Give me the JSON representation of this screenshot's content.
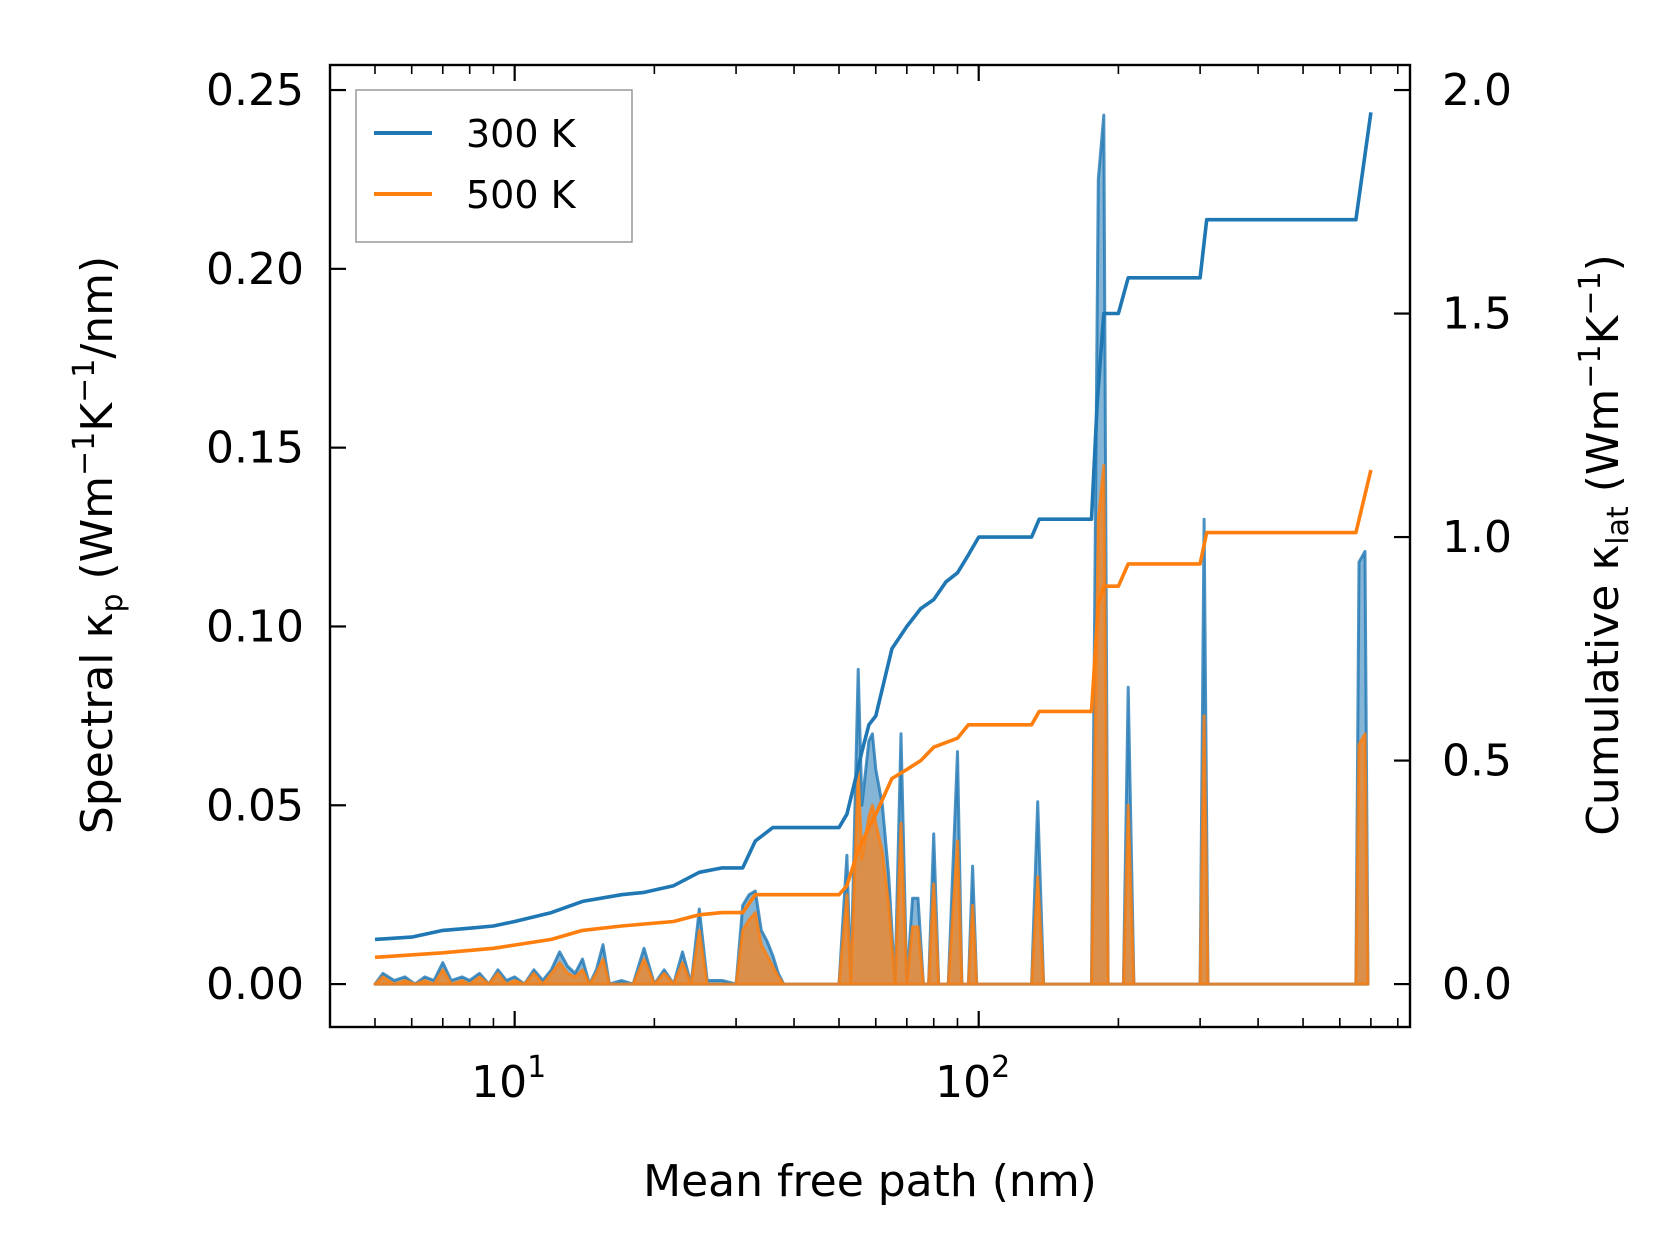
{
  "chart_data": {
    "type": "line",
    "xlabel": "Mean free path (nm)",
    "ylabel_left_main": "Spectral κ",
    "ylabel_left_sub": "p",
    "ylabel_left_unit_a": "(Wm",
    "ylabel_left_sup1": "−1",
    "ylabel_left_unit_b": "K",
    "ylabel_left_sup2": "−1",
    "ylabel_left_unit_c": "/nm)",
    "ylabel_right_main": "Cumulative κ",
    "ylabel_right_sub": "lat",
    "ylabel_right_unit_a": "(Wm",
    "ylabel_right_sup1": "−1",
    "ylabel_right_unit_b": "K",
    "ylabel_right_sup2": "−1",
    "ylabel_right_unit_c": ")",
    "x_scale": "log",
    "xlim": [
      4.0,
      850
    ],
    "ylim_left": [
      -0.012,
      0.257
    ],
    "ylim_right": [
      -0.096,
      2.056
    ],
    "left_ticks": [
      {
        "value": 0.0,
        "label": "0.00"
      },
      {
        "value": 0.05,
        "label": "0.05"
      },
      {
        "value": 0.1,
        "label": "0.10"
      },
      {
        "value": 0.15,
        "label": "0.15"
      },
      {
        "value": 0.2,
        "label": "0.20"
      },
      {
        "value": 0.25,
        "label": "0.25"
      }
    ],
    "right_ticks": [
      {
        "value": 0.0,
        "label": "0.0"
      },
      {
        "value": 0.5,
        "label": "0.5"
      },
      {
        "value": 1.0,
        "label": "1.0"
      },
      {
        "value": 1.5,
        "label": "1.5"
      },
      {
        "value": 2.0,
        "label": "2.0"
      }
    ],
    "x_ticks": [
      {
        "value": 10,
        "base": "10",
        "exp": "1"
      },
      {
        "value": 100,
        "base": "10",
        "exp": "2"
      }
    ],
    "legend_position": "upper-left",
    "series": [
      {
        "name": "300 K",
        "color": "#1f77b4",
        "cumulative": [
          [
            5.0,
            0.1
          ],
          [
            6.0,
            0.105
          ],
          [
            7.0,
            0.12
          ],
          [
            8.0,
            0.125
          ],
          [
            9.0,
            0.13
          ],
          [
            10.0,
            0.14
          ],
          [
            12.0,
            0.16
          ],
          [
            14.0,
            0.185
          ],
          [
            17.0,
            0.2
          ],
          [
            19.0,
            0.205
          ],
          [
            22.0,
            0.22
          ],
          [
            25.0,
            0.25
          ],
          [
            28.0,
            0.26
          ],
          [
            31.0,
            0.26
          ],
          [
            33.0,
            0.32
          ],
          [
            36.0,
            0.35
          ],
          [
            45.0,
            0.35
          ],
          [
            50.0,
            0.35
          ],
          [
            52.0,
            0.38
          ],
          [
            54.0,
            0.45
          ],
          [
            56.0,
            0.52
          ],
          [
            58.0,
            0.58
          ],
          [
            60.0,
            0.6
          ],
          [
            65.0,
            0.75
          ],
          [
            70.0,
            0.8
          ],
          [
            75.0,
            0.84
          ],
          [
            80.0,
            0.86
          ],
          [
            85.0,
            0.9
          ],
          [
            90.0,
            0.92
          ],
          [
            95.0,
            0.96
          ],
          [
            100.0,
            1.0
          ],
          [
            130.0,
            1.0
          ],
          [
            135.0,
            1.04
          ],
          [
            175.0,
            1.04
          ],
          [
            180.0,
            1.3
          ],
          [
            186.0,
            1.5
          ],
          [
            200.0,
            1.5
          ],
          [
            210.0,
            1.58
          ],
          [
            300.0,
            1.58
          ],
          [
            310.0,
            1.71
          ],
          [
            650.0,
            1.71
          ],
          [
            700.0,
            1.95
          ]
        ],
        "spectral": [
          [
            5.0,
            0.0
          ],
          [
            5.2,
            0.003
          ],
          [
            5.5,
            0.001
          ],
          [
            5.8,
            0.002
          ],
          [
            6.1,
            0.0
          ],
          [
            6.4,
            0.002
          ],
          [
            6.7,
            0.001
          ],
          [
            7.0,
            0.006
          ],
          [
            7.3,
            0.001
          ],
          [
            7.7,
            0.002
          ],
          [
            8.0,
            0.001
          ],
          [
            8.4,
            0.003
          ],
          [
            8.8,
            0.0
          ],
          [
            9.2,
            0.004
          ],
          [
            9.6,
            0.001
          ],
          [
            10.0,
            0.002
          ],
          [
            10.5,
            0.0
          ],
          [
            11.0,
            0.004
          ],
          [
            11.5,
            0.001
          ],
          [
            12.0,
            0.004
          ],
          [
            12.5,
            0.009
          ],
          [
            13.0,
            0.005
          ],
          [
            13.5,
            0.003
          ],
          [
            14.0,
            0.007
          ],
          [
            14.5,
            0.0
          ],
          [
            15.0,
            0.004
          ],
          [
            15.5,
            0.011
          ],
          [
            16.0,
            0.0
          ],
          [
            17.0,
            0.001
          ],
          [
            18.0,
            0.0
          ],
          [
            19.0,
            0.01
          ],
          [
            20.0,
            0.0
          ],
          [
            21.0,
            0.004
          ],
          [
            22.0,
            0.0
          ],
          [
            23.0,
            0.009
          ],
          [
            24.0,
            0.0
          ],
          [
            25.0,
            0.021
          ],
          [
            26.0,
            0.001
          ],
          [
            28.0,
            0.001
          ],
          [
            30.0,
            0.0
          ],
          [
            31.0,
            0.022
          ],
          [
            32.0,
            0.025
          ],
          [
            33.0,
            0.026
          ],
          [
            34.0,
            0.015
          ],
          [
            35.0,
            0.012
          ],
          [
            36.0,
            0.008
          ],
          [
            37.0,
            0.003
          ],
          [
            38.0,
            0.0
          ],
          [
            48.0,
            0.0
          ],
          [
            50.0,
            0.0
          ],
          [
            52.0,
            0.036
          ],
          [
            53.0,
            0.0
          ],
          [
            55.0,
            0.088
          ],
          [
            56.0,
            0.05
          ],
          [
            58.0,
            0.068
          ],
          [
            59.0,
            0.07
          ],
          [
            60.0,
            0.06
          ],
          [
            62.0,
            0.05
          ],
          [
            64.0,
            0.03
          ],
          [
            66.0,
            0.0
          ],
          [
            68.0,
            0.07
          ],
          [
            70.0,
            0.0
          ],
          [
            72.0,
            0.024
          ],
          [
            74.0,
            0.024
          ],
          [
            76.0,
            0.0
          ],
          [
            78.0,
            0.0
          ],
          [
            80.0,
            0.042
          ],
          [
            82.0,
            0.0
          ],
          [
            86.0,
            0.0
          ],
          [
            90.0,
            0.065
          ],
          [
            92.0,
            0.0
          ],
          [
            95.0,
            0.0
          ],
          [
            97.0,
            0.033
          ],
          [
            99.0,
            0.0
          ],
          [
            130.0,
            0.0
          ],
          [
            134.0,
            0.051
          ],
          [
            138.0,
            0.0
          ],
          [
            175.0,
            0.0
          ],
          [
            181.0,
            0.225
          ],
          [
            186.0,
            0.243
          ],
          [
            190.0,
            0.0
          ],
          [
            205.0,
            0.0
          ],
          [
            210.0,
            0.083
          ],
          [
            216.0,
            0.0
          ],
          [
            300.0,
            0.0
          ],
          [
            306.0,
            0.13
          ],
          [
            312.0,
            0.0
          ],
          [
            650.0,
            0.0
          ],
          [
            660.0,
            0.118
          ],
          [
            680.0,
            0.121
          ],
          [
            690.0,
            0.0
          ]
        ]
      },
      {
        "name": "500 K",
        "color": "#ff7f0e",
        "cumulative": [
          [
            5.0,
            0.06
          ],
          [
            7.0,
            0.07
          ],
          [
            9.0,
            0.08
          ],
          [
            12.0,
            0.1
          ],
          [
            14.0,
            0.12
          ],
          [
            17.0,
            0.13
          ],
          [
            22.0,
            0.14
          ],
          [
            25.0,
            0.155
          ],
          [
            28.0,
            0.16
          ],
          [
            31.0,
            0.16
          ],
          [
            33.0,
            0.2
          ],
          [
            36.0,
            0.2
          ],
          [
            50.0,
            0.2
          ],
          [
            52.0,
            0.22
          ],
          [
            55.0,
            0.3
          ],
          [
            58.0,
            0.35
          ],
          [
            60.0,
            0.38
          ],
          [
            65.0,
            0.46
          ],
          [
            70.0,
            0.48
          ],
          [
            75.0,
            0.5
          ],
          [
            80.0,
            0.53
          ],
          [
            90.0,
            0.55
          ],
          [
            95.0,
            0.58
          ],
          [
            130.0,
            0.58
          ],
          [
            135.0,
            0.61
          ],
          [
            175.0,
            0.61
          ],
          [
            181.0,
            0.85
          ],
          [
            186.0,
            0.89
          ],
          [
            200.0,
            0.89
          ],
          [
            210.0,
            0.94
          ],
          [
            300.0,
            0.94
          ],
          [
            310.0,
            1.01
          ],
          [
            650.0,
            1.01
          ],
          [
            700.0,
            1.15
          ]
        ],
        "spectral": [
          [
            5.0,
            0.0
          ],
          [
            5.2,
            0.002
          ],
          [
            5.5,
            0.0
          ],
          [
            5.8,
            0.001
          ],
          [
            6.1,
            0.0
          ],
          [
            6.4,
            0.001
          ],
          [
            6.7,
            0.0
          ],
          [
            7.0,
            0.004
          ],
          [
            7.3,
            0.0
          ],
          [
            7.7,
            0.001
          ],
          [
            8.0,
            0.0
          ],
          [
            8.4,
            0.002
          ],
          [
            8.8,
            0.0
          ],
          [
            9.2,
            0.003
          ],
          [
            9.6,
            0.0
          ],
          [
            10.0,
            0.001
          ],
          [
            10.5,
            0.0
          ],
          [
            11.0,
            0.003
          ],
          [
            11.5,
            0.0
          ],
          [
            12.0,
            0.003
          ],
          [
            12.5,
            0.006
          ],
          [
            13.0,
            0.003
          ],
          [
            13.5,
            0.002
          ],
          [
            14.0,
            0.004
          ],
          [
            14.5,
            0.0
          ],
          [
            15.0,
            0.003
          ],
          [
            15.5,
            0.007
          ],
          [
            16.0,
            0.0
          ],
          [
            17.0,
            0.0
          ],
          [
            18.0,
            0.0
          ],
          [
            19.0,
            0.007
          ],
          [
            20.0,
            0.0
          ],
          [
            21.0,
            0.003
          ],
          [
            22.0,
            0.0
          ],
          [
            23.0,
            0.006
          ],
          [
            24.0,
            0.0
          ],
          [
            25.0,
            0.015
          ],
          [
            26.0,
            0.0
          ],
          [
            28.0,
            0.0
          ],
          [
            30.0,
            0.0
          ],
          [
            31.0,
            0.015
          ],
          [
            32.0,
            0.018
          ],
          [
            33.0,
            0.02
          ],
          [
            34.0,
            0.011
          ],
          [
            35.0,
            0.008
          ],
          [
            36.0,
            0.005
          ],
          [
            37.0,
            0.002
          ],
          [
            38.0,
            0.0
          ],
          [
            48.0,
            0.0
          ],
          [
            50.0,
            0.0
          ],
          [
            52.0,
            0.025
          ],
          [
            53.0,
            0.0
          ],
          [
            55.0,
            0.06
          ],
          [
            56.0,
            0.035
          ],
          [
            58.0,
            0.047
          ],
          [
            59.0,
            0.05
          ],
          [
            60.0,
            0.045
          ],
          [
            62.0,
            0.037
          ],
          [
            64.0,
            0.022
          ],
          [
            66.0,
            0.0
          ],
          [
            68.0,
            0.045
          ],
          [
            70.0,
            0.0
          ],
          [
            72.0,
            0.016
          ],
          [
            74.0,
            0.016
          ],
          [
            76.0,
            0.0
          ],
          [
            78.0,
            0.0
          ],
          [
            80.0,
            0.028
          ],
          [
            82.0,
            0.0
          ],
          [
            86.0,
            0.0
          ],
          [
            90.0,
            0.04
          ],
          [
            92.0,
            0.0
          ],
          [
            95.0,
            0.0
          ],
          [
            97.0,
            0.022
          ],
          [
            99.0,
            0.0
          ],
          [
            130.0,
            0.0
          ],
          [
            134.0,
            0.03
          ],
          [
            138.0,
            0.0
          ],
          [
            175.0,
            0.0
          ],
          [
            181.0,
            0.13
          ],
          [
            186.0,
            0.145
          ],
          [
            190.0,
            0.0
          ],
          [
            205.0,
            0.0
          ],
          [
            210.0,
            0.05
          ],
          [
            216.0,
            0.0
          ],
          [
            300.0,
            0.0
          ],
          [
            306.0,
            0.075
          ],
          [
            312.0,
            0.0
          ],
          [
            650.0,
            0.0
          ],
          [
            660.0,
            0.067
          ],
          [
            680.0,
            0.07
          ],
          [
            690.0,
            0.0
          ]
        ]
      }
    ]
  }
}
